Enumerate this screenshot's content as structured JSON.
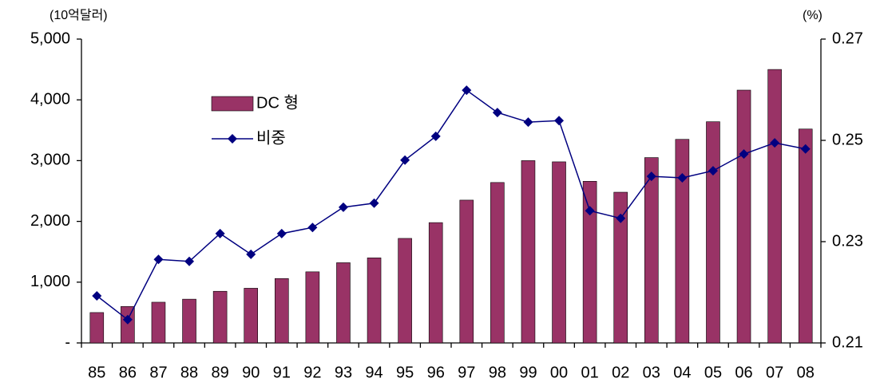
{
  "chart_data": {
    "type": "bar-line",
    "y_label": "(10억달러)",
    "y2_label": "(%)",
    "categories": [
      "85",
      "86",
      "87",
      "88",
      "89",
      "90",
      "91",
      "92",
      "93",
      "94",
      "95",
      "96",
      "97",
      "98",
      "99",
      "00",
      "01",
      "02",
      "03",
      "04",
      "05",
      "06",
      "07",
      "08"
    ],
    "series": [
      {
        "name": "DC 형",
        "type": "bar",
        "color": "#993366",
        "axis": "y",
        "values": [
          500,
          600,
          670,
          720,
          850,
          900,
          1060,
          1170,
          1320,
          1400,
          1720,
          1980,
          2350,
          2640,
          3000,
          2980,
          2660,
          2480,
          3050,
          3350,
          3640,
          4160,
          4500,
          3520
        ]
      },
      {
        "name": "비중",
        "type": "line",
        "color": "#000080",
        "axis": "y2",
        "values": [
          0.2193,
          0.2146,
          0.2265,
          0.2261,
          0.2316,
          0.2275,
          0.2316,
          0.2328,
          0.2368,
          0.2376,
          0.2461,
          0.2508,
          0.2599,
          0.2555,
          0.2536,
          0.2539,
          0.2361,
          0.2346,
          0.2429,
          0.2426,
          0.244,
          0.2473,
          0.2495,
          0.2483
        ]
      }
    ],
    "ylim": [
      0,
      5000
    ],
    "yticks": [
      {
        "value": 0,
        "label": "-"
      },
      {
        "value": 1000,
        "label": "1,000"
      },
      {
        "value": 2000,
        "label": "2,000"
      },
      {
        "value": 3000,
        "label": "3,000"
      },
      {
        "value": 4000,
        "label": "4,000"
      },
      {
        "value": 5000,
        "label": "5,000"
      }
    ],
    "y2lim": [
      0.21,
      0.27
    ],
    "y2ticks": [
      0.21,
      0.23,
      0.25,
      0.27
    ],
    "legend": "upper left"
  }
}
